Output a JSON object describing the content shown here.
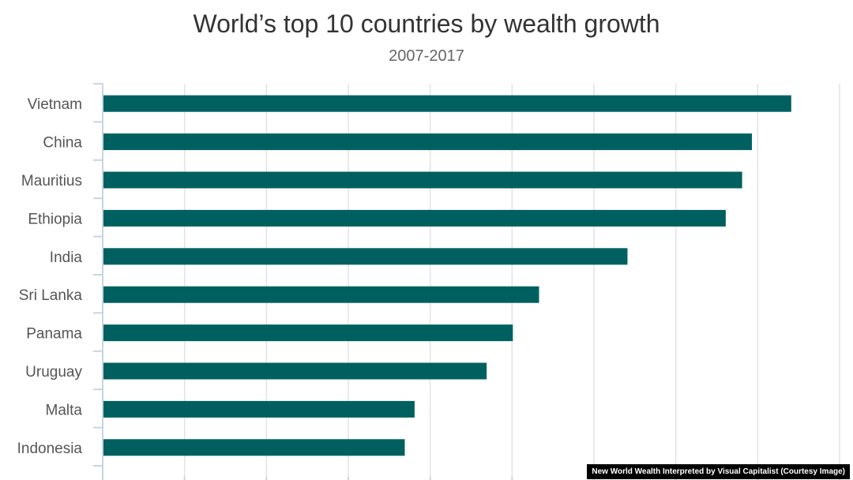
{
  "chart_data": {
    "type": "bar",
    "orientation": "horizontal",
    "title": "World’s top 10 countries by wealth growth",
    "subtitle": "2007-2017",
    "categories": [
      "Vietnam",
      "China",
      "Mauritius",
      "Ethiopia",
      "India",
      "Sri Lanka",
      "Panama",
      "Uruguay",
      "Malta",
      "Indonesia"
    ],
    "values": [
      210,
      198,
      195,
      190,
      160,
      133,
      125,
      117,
      95,
      92
    ],
    "xlim": [
      0,
      225
    ],
    "grid": true,
    "bar_color": "#006060",
    "grid_color": "#e3e3e3",
    "axis_color": "#c8d4e3"
  },
  "credit": "New World Wealth Interpreted by Visual Capitalist (Courtesy Image)"
}
